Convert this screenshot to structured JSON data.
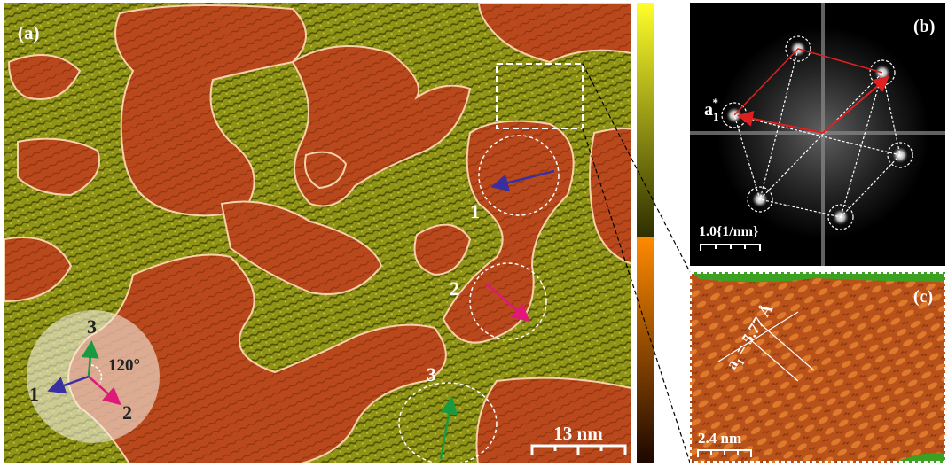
{
  "panel_a": {
    "label": "(a)",
    "region_labels": [
      "1",
      "2",
      "3"
    ],
    "inset": {
      "vector_labels": [
        "1",
        "2",
        "3"
      ],
      "angle": "120°"
    },
    "scale_bar": "13 nm"
  },
  "panel_b": {
    "label": "(b)",
    "vector_label": {
      "base": "a",
      "sub": "1",
      "sup": "*"
    },
    "scale_bar": "1.0{1/nm}"
  },
  "panel_c": {
    "label": "(c)",
    "lattice_label": {
      "base": "a",
      "sub": "1",
      "text": "= 5.77 Å"
    },
    "scale_bar": "2.4 nm"
  }
}
